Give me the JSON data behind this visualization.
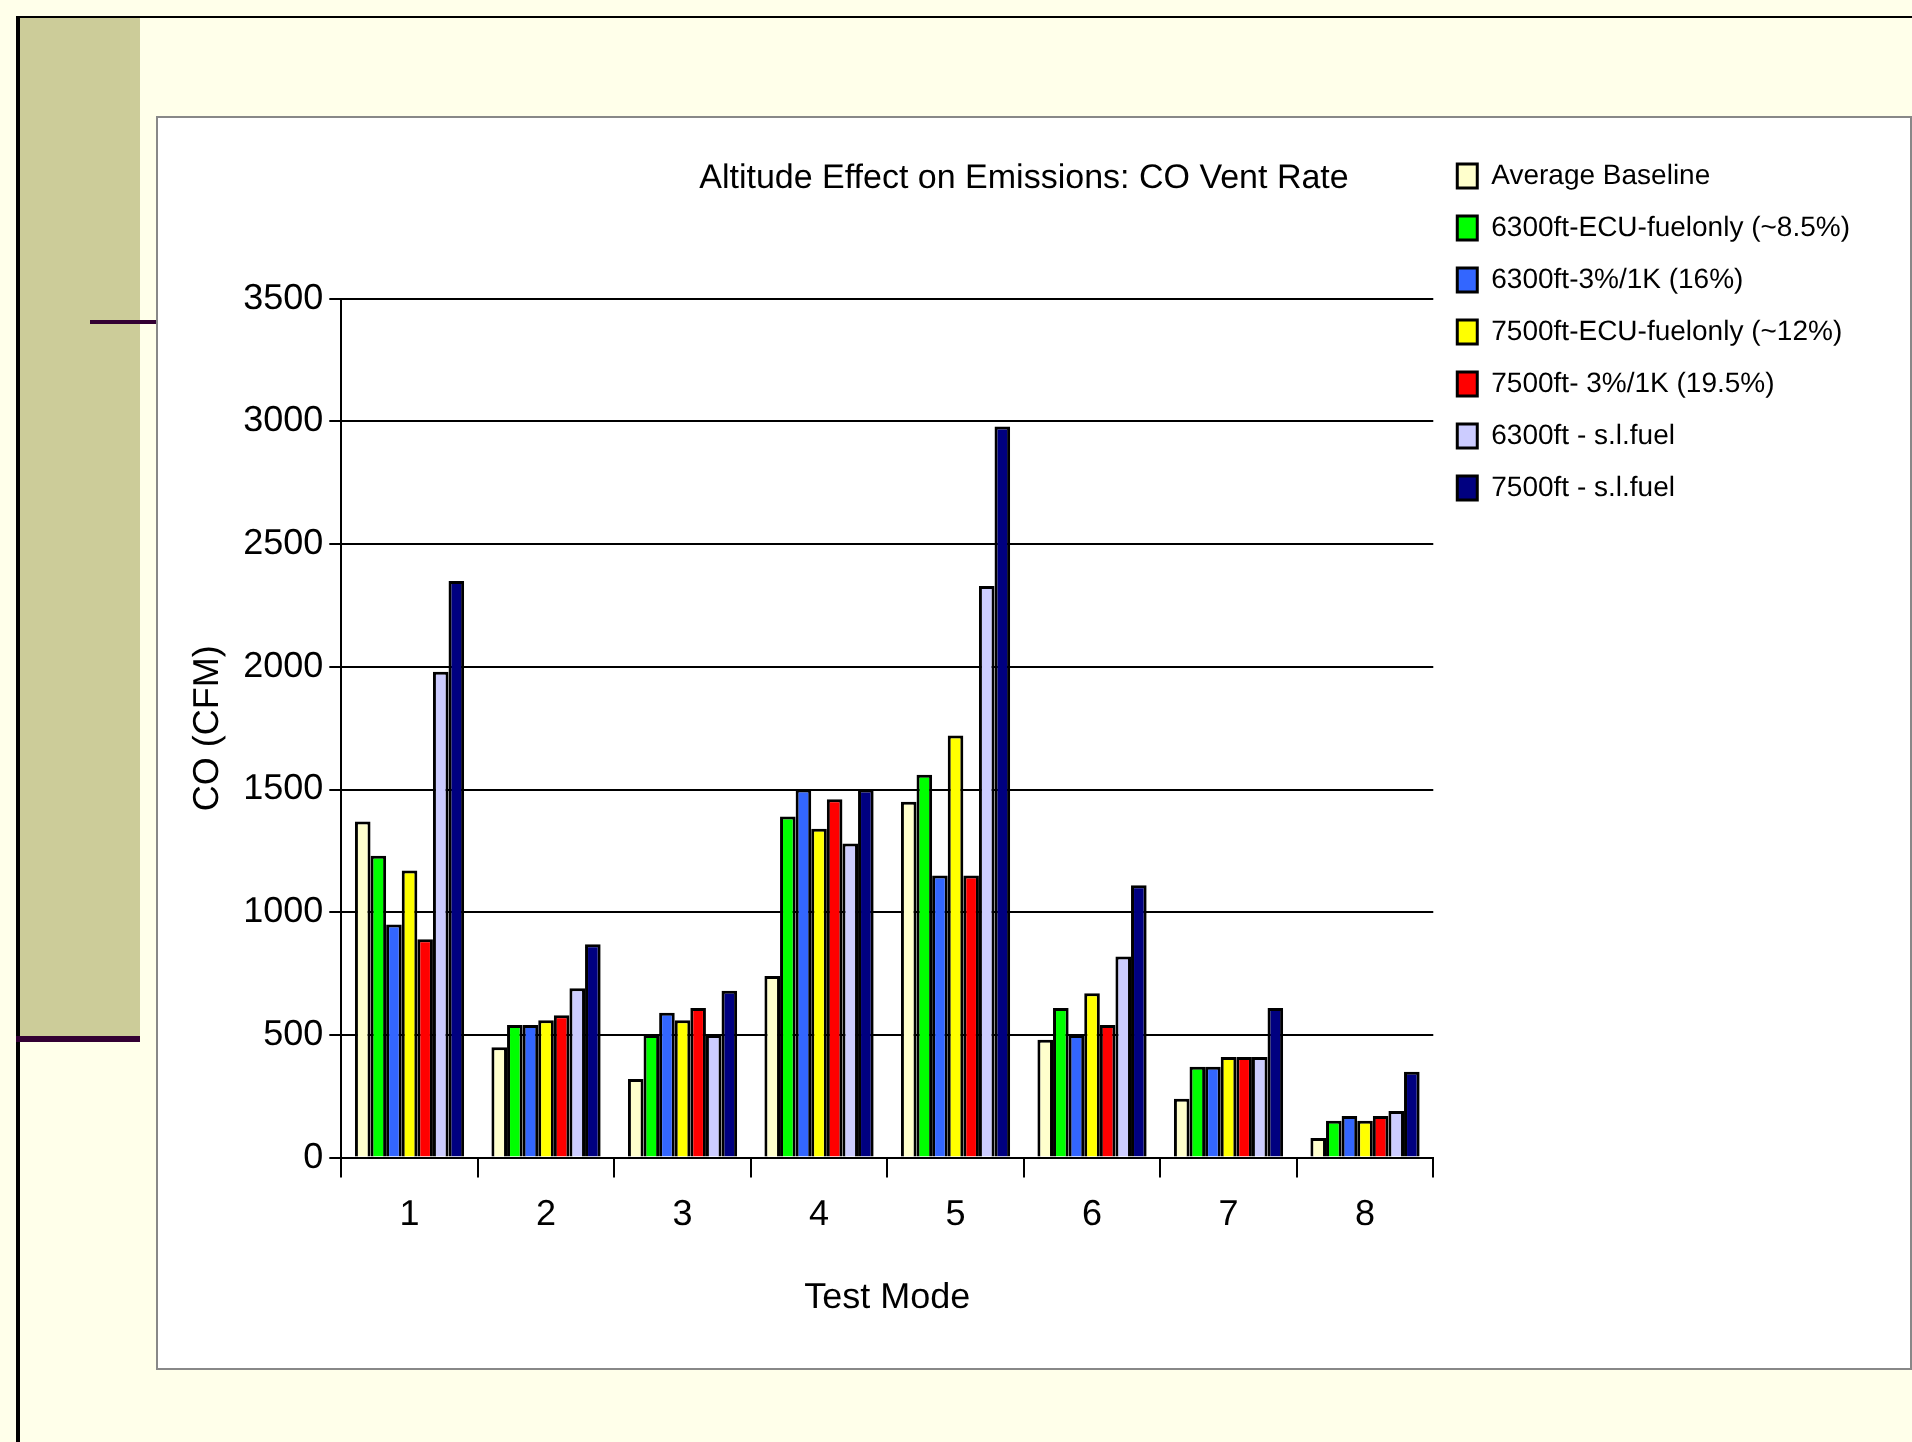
{
  "chart_data": {
    "type": "bar",
    "title": "Altitude Effect on Emissions: CO Vent Rate",
    "xlabel": "Test Mode",
    "ylabel": "CO (CFM)",
    "categories": [
      "1",
      "2",
      "3",
      "4",
      "5",
      "6",
      "7",
      "8"
    ],
    "series": [
      {
        "name": "Average Baseline",
        "color": "#ffffcc",
        "values": [
          1370,
          450,
          320,
          740,
          1450,
          480,
          240,
          80
        ]
      },
      {
        "name": "6300ft-ECU-fuelonly (~8.5%)",
        "color": "#00ff00",
        "values": [
          1230,
          540,
          500,
          1390,
          1560,
          610,
          370,
          150
        ]
      },
      {
        "name": "6300ft-3%/1K (16%)",
        "color": "#3366ff",
        "values": [
          950,
          540,
          590,
          1500,
          1150,
          500,
          370,
          170
        ]
      },
      {
        "name": "7500ft-ECU-fuelonly (~12%)",
        "color": "#ffff00",
        "values": [
          1170,
          560,
          560,
          1340,
          1720,
          670,
          410,
          150
        ]
      },
      {
        "name": "7500ft- 3%/1K (19.5%)",
        "color": "#ff0000",
        "values": [
          890,
          580,
          610,
          1460,
          1150,
          540,
          410,
          170
        ]
      },
      {
        "name": "6300ft - s.l.fuel",
        "color": "#ccccff",
        "values": [
          1980,
          690,
          500,
          1280,
          2330,
          820,
          410,
          190
        ]
      },
      {
        "name": "7500ft - s.l.fuel",
        "color": "#000080",
        "values": [
          2350,
          870,
          680,
          1500,
          2980,
          1110,
          610,
          350
        ]
      }
    ],
    "ylim": [
      0,
      3500
    ],
    "yticks": [
      0,
      500,
      1000,
      1500,
      2000,
      2500,
      3000,
      3500
    ],
    "grid": "y",
    "legend": "right"
  }
}
